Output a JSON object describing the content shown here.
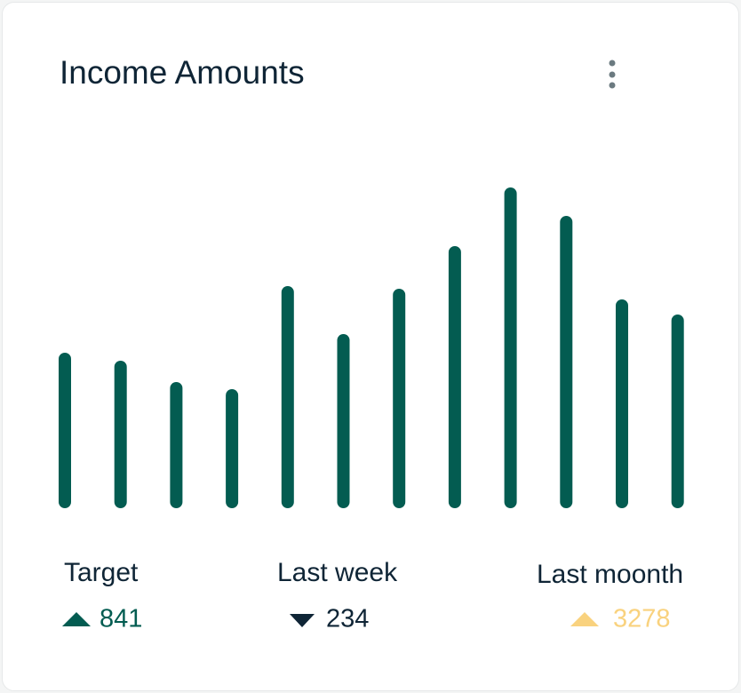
{
  "title": "Income Amounts",
  "chart_data": {
    "type": "bar",
    "color": "#035c51",
    "values": [
      175,
      166,
      142,
      134,
      250,
      196,
      247,
      295,
      361,
      329,
      235,
      218
    ]
  },
  "stats": [
    {
      "label": "Target",
      "value": 841,
      "trend": "up",
      "color": "#035c51"
    },
    {
      "label": "Last week",
      "value": 234,
      "trend": "down",
      "color": "#0f2536"
    },
    {
      "label": "Last moonth",
      "value": 3278,
      "trend": "up",
      "color": "#f9d27e"
    }
  ]
}
